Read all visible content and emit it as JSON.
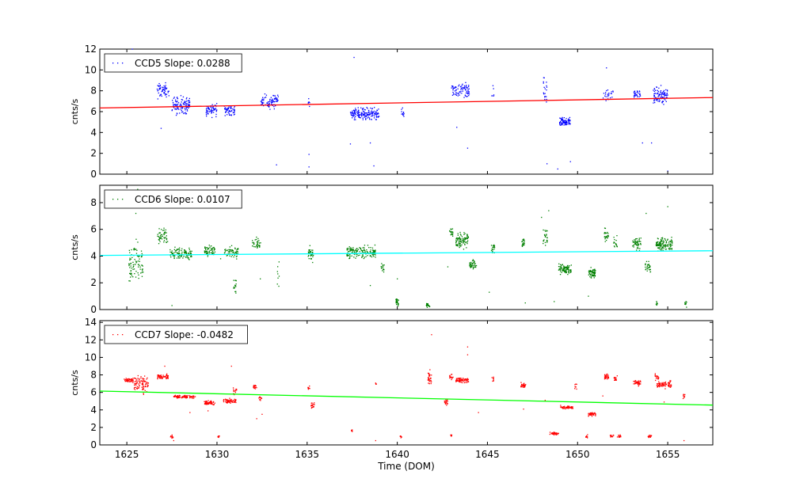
{
  "chart_data": [
    {
      "type": "scatter",
      "color": "#0000ff",
      "ylabel": "cnts/s",
      "xlabel": "",
      "xlim": [
        1623.5,
        1657.5
      ],
      "ylim": [
        0,
        12
      ],
      "yticks": [
        0,
        2,
        4,
        6,
        8,
        10,
        12
      ],
      "show_xtick_labels": false,
      "legend": {
        "label": "CCD5 Slope: 0.0288",
        "position": "top-left"
      },
      "fit": {
        "color": "#ff0000",
        "x": [
          1623.5,
          1657.5
        ],
        "y": [
          6.35,
          7.35
        ]
      },
      "clusters": [
        {
          "x": 1627.0,
          "xw": 0.35,
          "y": 8.0,
          "yw": 0.8,
          "n": 60
        },
        {
          "x": 1628.0,
          "xw": 0.5,
          "y": 6.6,
          "yw": 0.9,
          "n": 110
        },
        {
          "x": 1629.7,
          "xw": 0.3,
          "y": 6.2,
          "yw": 0.7,
          "n": 60
        },
        {
          "x": 1630.7,
          "xw": 0.3,
          "y": 6.1,
          "yw": 0.6,
          "n": 55
        },
        {
          "x": 1632.9,
          "xw": 0.5,
          "y": 7.0,
          "yw": 0.7,
          "n": 80
        },
        {
          "x": 1635.1,
          "xw": 0.06,
          "y": 6.9,
          "yw": 0.4,
          "n": 8
        },
        {
          "x": 1638.2,
          "xw": 0.8,
          "y": 5.8,
          "yw": 0.6,
          "n": 170
        },
        {
          "x": 1640.3,
          "xw": 0.08,
          "y": 5.8,
          "yw": 0.5,
          "n": 12
        },
        {
          "x": 1643.5,
          "xw": 0.5,
          "y": 8.0,
          "yw": 0.8,
          "n": 80
        },
        {
          "x": 1645.3,
          "xw": 0.06,
          "y": 7.8,
          "yw": 0.8,
          "n": 6
        },
        {
          "x": 1648.2,
          "xw": 0.1,
          "y": 7.8,
          "yw": 1.5,
          "n": 20
        },
        {
          "x": 1649.3,
          "xw": 0.3,
          "y": 5.0,
          "yw": 0.5,
          "n": 80
        },
        {
          "x": 1651.7,
          "xw": 0.3,
          "y": 7.6,
          "yw": 0.7,
          "n": 25
        },
        {
          "x": 1653.3,
          "xw": 0.2,
          "y": 7.7,
          "yw": 0.4,
          "n": 30
        },
        {
          "x": 1654.6,
          "xw": 0.4,
          "y": 7.5,
          "yw": 0.9,
          "n": 100
        }
      ],
      "outliers": [
        [
          1625.3,
          12.0
        ],
        [
          1626.9,
          4.4
        ],
        [
          1633.3,
          0.9
        ],
        [
          1635.1,
          0.7
        ],
        [
          1635.1,
          1.9
        ],
        [
          1637.6,
          11.2
        ],
        [
          1637.4,
          2.9
        ],
        [
          1638.5,
          3.0
        ],
        [
          1638.7,
          0.8
        ],
        [
          1643.3,
          4.5
        ],
        [
          1643.9,
          2.5
        ],
        [
          1648.3,
          1.0
        ],
        [
          1648.9,
          0.5
        ],
        [
          1649.6,
          1.2
        ],
        [
          1651.6,
          10.2
        ],
        [
          1653.6,
          3.0
        ],
        [
          1654.1,
          3.0
        ],
        [
          1655.0,
          0.3
        ]
      ]
    },
    {
      "type": "scatter",
      "color": "#008000",
      "ylabel": "cnts/s",
      "xlabel": "",
      "xlim": [
        1623.5,
        1657.5
      ],
      "ylim": [
        0,
        9.3
      ],
      "yticks": [
        0,
        2,
        4,
        6,
        8
      ],
      "show_xtick_labels": false,
      "legend": {
        "label": "CCD6 Slope: 0.0107",
        "position": "top-left"
      },
      "fit": {
        "color": "#00ffff",
        "x": [
          1623.5,
          1657.5
        ],
        "y": [
          4.05,
          4.4
        ]
      },
      "clusters": [
        {
          "x": 1625.5,
          "xw": 0.4,
          "y": 3.5,
          "yw": 1.6,
          "n": 90
        },
        {
          "x": 1627.0,
          "xw": 0.3,
          "y": 5.5,
          "yw": 0.6,
          "n": 50
        },
        {
          "x": 1628.0,
          "xw": 0.6,
          "y": 4.2,
          "yw": 0.5,
          "n": 110
        },
        {
          "x": 1629.6,
          "xw": 0.3,
          "y": 4.4,
          "yw": 0.5,
          "n": 60
        },
        {
          "x": 1630.8,
          "xw": 0.4,
          "y": 4.3,
          "yw": 0.5,
          "n": 60
        },
        {
          "x": 1631.0,
          "xw": 0.08,
          "y": 1.8,
          "yw": 0.7,
          "n": 15
        },
        {
          "x": 1632.2,
          "xw": 0.25,
          "y": 4.9,
          "yw": 0.5,
          "n": 35
        },
        {
          "x": 1633.4,
          "xw": 0.05,
          "y": 2.5,
          "yw": 1.1,
          "n": 8
        },
        {
          "x": 1635.2,
          "xw": 0.15,
          "y": 4.2,
          "yw": 0.6,
          "n": 35
        },
        {
          "x": 1638.0,
          "xw": 0.8,
          "y": 4.3,
          "yw": 0.5,
          "n": 150
        },
        {
          "x": 1639.2,
          "xw": 0.1,
          "y": 3.2,
          "yw": 0.5,
          "n": 15
        },
        {
          "x": 1640.0,
          "xw": 0.08,
          "y": 0.5,
          "yw": 0.3,
          "n": 30
        },
        {
          "x": 1641.7,
          "xw": 0.1,
          "y": 0.35,
          "yw": 0.2,
          "n": 20
        },
        {
          "x": 1643.0,
          "xw": 0.1,
          "y": 5.8,
          "yw": 0.4,
          "n": 20
        },
        {
          "x": 1643.6,
          "xw": 0.35,
          "y": 5.2,
          "yw": 0.6,
          "n": 90
        },
        {
          "x": 1644.2,
          "xw": 0.2,
          "y": 3.4,
          "yw": 0.4,
          "n": 40
        },
        {
          "x": 1645.3,
          "xw": 0.1,
          "y": 4.6,
          "yw": 0.5,
          "n": 20
        },
        {
          "x": 1647.0,
          "xw": 0.1,
          "y": 5.0,
          "yw": 0.4,
          "n": 20
        },
        {
          "x": 1648.2,
          "xw": 0.12,
          "y": 5.5,
          "yw": 0.7,
          "n": 25
        },
        {
          "x": 1649.3,
          "xw": 0.35,
          "y": 3.0,
          "yw": 0.4,
          "n": 90
        },
        {
          "x": 1650.8,
          "xw": 0.2,
          "y": 2.7,
          "yw": 0.4,
          "n": 60
        },
        {
          "x": 1651.6,
          "xw": 0.12,
          "y": 5.6,
          "yw": 0.5,
          "n": 25
        },
        {
          "x": 1652.1,
          "xw": 0.1,
          "y": 5.0,
          "yw": 0.5,
          "n": 15
        },
        {
          "x": 1653.3,
          "xw": 0.25,
          "y": 4.9,
          "yw": 0.6,
          "n": 50
        },
        {
          "x": 1653.9,
          "xw": 0.15,
          "y": 3.2,
          "yw": 0.6,
          "n": 30
        },
        {
          "x": 1654.8,
          "xw": 0.45,
          "y": 4.9,
          "yw": 0.5,
          "n": 120
        },
        {
          "x": 1654.4,
          "xw": 0.05,
          "y": 0.4,
          "yw": 0.3,
          "n": 8
        },
        {
          "x": 1656.0,
          "xw": 0.05,
          "y": 0.4,
          "yw": 0.3,
          "n": 10
        }
      ],
      "outliers": [
        [
          1625.6,
          9.0
        ],
        [
          1625.5,
          7.2
        ],
        [
          1626.1,
          8.1
        ],
        [
          1627.5,
          0.3
        ],
        [
          1638.5,
          1.8
        ],
        [
          1640.0,
          2.3
        ],
        [
          1642.8,
          3.2
        ],
        [
          1645.1,
          1.3
        ],
        [
          1647.1,
          0.5
        ],
        [
          1648.0,
          6.9
        ],
        [
          1648.4,
          7.4
        ],
        [
          1648.7,
          0.6
        ],
        [
          1650.6,
          1.0
        ],
        [
          1653.8,
          7.2
        ],
        [
          1655.0,
          7.7
        ],
        [
          1630.2,
          3.8
        ],
        [
          1632.4,
          2.3
        ]
      ]
    },
    {
      "type": "scatter",
      "color": "#ff0000",
      "ylabel": "cnts/s",
      "xlabel": "Time (DOM)",
      "xlim": [
        1623.5,
        1657.5
      ],
      "ylim": [
        0,
        14.2
      ],
      "yticks": [
        0,
        2,
        4,
        6,
        8,
        10,
        12,
        14
      ],
      "xticks": [
        1625,
        1630,
        1635,
        1640,
        1645,
        1650,
        1655
      ],
      "show_xtick_labels": true,
      "legend": {
        "label": "CCD7 Slope: -0.0482",
        "position": "top-left"
      },
      "fit": {
        "color": "#00ff00",
        "x": [
          1623.5,
          1657.5
        ],
        "y": [
          6.15,
          4.55
        ]
      },
      "clusters": [
        {
          "x": 1625.1,
          "xw": 0.25,
          "y": 7.4,
          "yw": 0.3,
          "n": 50
        },
        {
          "x": 1625.8,
          "xw": 0.4,
          "y": 7.0,
          "yw": 1.1,
          "n": 90
        },
        {
          "x": 1627.0,
          "xw": 0.3,
          "y": 7.8,
          "yw": 0.3,
          "n": 60
        },
        {
          "x": 1628.2,
          "xw": 0.6,
          "y": 5.5,
          "yw": 0.2,
          "n": 100
        },
        {
          "x": 1627.5,
          "xw": 0.08,
          "y": 1.0,
          "yw": 0.2,
          "n": 12
        },
        {
          "x": 1629.6,
          "xw": 0.3,
          "y": 4.8,
          "yw": 0.25,
          "n": 60
        },
        {
          "x": 1630.1,
          "xw": 0.05,
          "y": 0.9,
          "yw": 0.2,
          "n": 8
        },
        {
          "x": 1630.7,
          "xw": 0.35,
          "y": 5.0,
          "yw": 0.3,
          "n": 60
        },
        {
          "x": 1631.0,
          "xw": 0.1,
          "y": 6.1,
          "yw": 0.6,
          "n": 15
        },
        {
          "x": 1632.1,
          "xw": 0.1,
          "y": 6.7,
          "yw": 0.3,
          "n": 20
        },
        {
          "x": 1632.4,
          "xw": 0.08,
          "y": 5.3,
          "yw": 0.3,
          "n": 12
        },
        {
          "x": 1635.1,
          "xw": 0.06,
          "y": 6.5,
          "yw": 0.2,
          "n": 10
        },
        {
          "x": 1635.3,
          "xw": 0.1,
          "y": 4.5,
          "yw": 0.4,
          "n": 20
        },
        {
          "x": 1637.5,
          "xw": 0.05,
          "y": 1.6,
          "yw": 0.2,
          "n": 8
        },
        {
          "x": 1638.8,
          "xw": 0.05,
          "y": 7.0,
          "yw": 0.2,
          "n": 6
        },
        {
          "x": 1640.2,
          "xw": 0.05,
          "y": 0.9,
          "yw": 0.2,
          "n": 8
        },
        {
          "x": 1641.8,
          "xw": 0.1,
          "y": 7.6,
          "yw": 1.0,
          "n": 30
        },
        {
          "x": 1642.7,
          "xw": 0.1,
          "y": 4.9,
          "yw": 0.4,
          "n": 20
        },
        {
          "x": 1643.0,
          "xw": 0.05,
          "y": 1.1,
          "yw": 0.2,
          "n": 8
        },
        {
          "x": 1643.0,
          "xw": 0.1,
          "y": 7.8,
          "yw": 0.3,
          "n": 15
        },
        {
          "x": 1643.6,
          "xw": 0.35,
          "y": 7.4,
          "yw": 0.3,
          "n": 80
        },
        {
          "x": 1645.3,
          "xw": 0.06,
          "y": 7.5,
          "yw": 0.3,
          "n": 8
        },
        {
          "x": 1647.0,
          "xw": 0.15,
          "y": 6.8,
          "yw": 0.3,
          "n": 30
        },
        {
          "x": 1648.7,
          "xw": 0.25,
          "y": 1.3,
          "yw": 0.15,
          "n": 40
        },
        {
          "x": 1649.4,
          "xw": 0.35,
          "y": 4.3,
          "yw": 0.2,
          "n": 60
        },
        {
          "x": 1649.9,
          "xw": 0.06,
          "y": 6.7,
          "yw": 0.4,
          "n": 8
        },
        {
          "x": 1650.5,
          "xw": 0.05,
          "y": 1.0,
          "yw": 0.2,
          "n": 8
        },
        {
          "x": 1650.8,
          "xw": 0.2,
          "y": 3.5,
          "yw": 0.2,
          "n": 40
        },
        {
          "x": 1651.6,
          "xw": 0.12,
          "y": 7.8,
          "yw": 0.4,
          "n": 30
        },
        {
          "x": 1651.9,
          "xw": 0.1,
          "y": 1.0,
          "yw": 0.15,
          "n": 15
        },
        {
          "x": 1652.1,
          "xw": 0.08,
          "y": 7.5,
          "yw": 0.3,
          "n": 15
        },
        {
          "x": 1652.3,
          "xw": 0.1,
          "y": 1.0,
          "yw": 0.15,
          "n": 15
        },
        {
          "x": 1653.3,
          "xw": 0.2,
          "y": 7.1,
          "yw": 0.3,
          "n": 40
        },
        {
          "x": 1654.0,
          "xw": 0.1,
          "y": 1.0,
          "yw": 0.15,
          "n": 15
        },
        {
          "x": 1654.4,
          "xw": 0.1,
          "y": 7.7,
          "yw": 0.5,
          "n": 20
        },
        {
          "x": 1654.8,
          "xw": 0.4,
          "y": 6.9,
          "yw": 0.4,
          "n": 80
        },
        {
          "x": 1655.9,
          "xw": 0.06,
          "y": 5.6,
          "yw": 0.4,
          "n": 10
        }
      ],
      "outliers": [
        [
          1641.9,
          12.6
        ],
        [
          1643.9,
          11.2
        ],
        [
          1643.9,
          10.3
        ],
        [
          1627.1,
          9.0
        ],
        [
          1630.8,
          9.0
        ],
        [
          1628.5,
          3.7
        ],
        [
          1629.5,
          3.9
        ],
        [
          1632.2,
          3.0
        ],
        [
          1632.5,
          3.5
        ],
        [
          1644.5,
          3.7
        ],
        [
          1647.0,
          4.1
        ],
        [
          1648.2,
          5.1
        ],
        [
          1651.4,
          5.6
        ],
        [
          1654.8,
          4.9
        ],
        [
          1655.9,
          0.5
        ],
        [
          1652.2,
          7.9
        ],
        [
          1627.6,
          0.5
        ],
        [
          1638.8,
          0.5
        ]
      ]
    }
  ]
}
